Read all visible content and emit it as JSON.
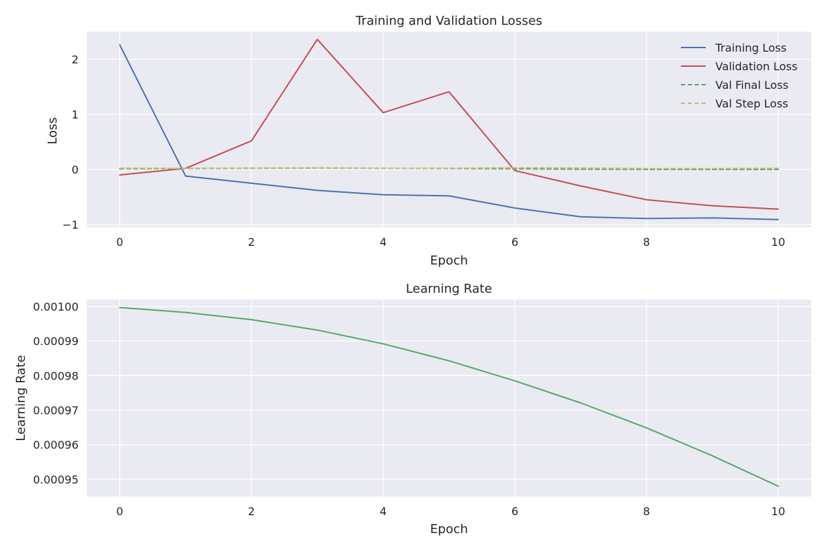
{
  "chart_data": [
    {
      "type": "line",
      "title": "Training and Validation Losses",
      "xlabel": "Epoch",
      "ylabel": "Loss",
      "xlim": [
        -0.5,
        10.5
      ],
      "ylim": [
        -1.05,
        2.5
      ],
      "x_ticks": [
        0,
        2,
        4,
        6,
        8,
        10
      ],
      "x_tick_labels": [
        "0",
        "2",
        "4",
        "6",
        "8",
        "10"
      ],
      "y_ticks": [
        -1,
        0,
        1,
        2
      ],
      "y_tick_labels": [
        "−1",
        "0",
        "1",
        "2"
      ],
      "grid": true,
      "legend_position": "top-right",
      "x": [
        0,
        1,
        2,
        3,
        4,
        5,
        6,
        7,
        8,
        9,
        10
      ],
      "series": [
        {
          "name": "Training Loss",
          "color": "#4c72b0",
          "dash": "solid",
          "values": [
            2.26,
            -0.12,
            -0.25,
            -0.38,
            -0.46,
            -0.48,
            -0.7,
            -0.86,
            -0.89,
            -0.88,
            -0.91
          ]
        },
        {
          "name": "Validation Loss",
          "color": "#c44e52",
          "dash": "solid",
          "values": [
            -0.1,
            0.02,
            0.52,
            2.36,
            1.03,
            1.41,
            -0.02,
            -0.3,
            -0.55,
            -0.66,
            -0.72
          ]
        },
        {
          "name": "Val Final Loss",
          "color": "#55a868",
          "dash": "dashed",
          "values": [
            0.01,
            0.015,
            0.02,
            0.025,
            0.02,
            0.015,
            0.01,
            0.005,
            0.0,
            0.0,
            0.0
          ]
        },
        {
          "name": "Val Step Loss",
          "color": "#ccb974",
          "dash": "dashed",
          "values": [
            0.02,
            0.02,
            0.025,
            0.03,
            0.02,
            0.02,
            0.03,
            0.025,
            0.015,
            0.015,
            0.02
          ]
        }
      ]
    },
    {
      "type": "line",
      "title": "Learning Rate",
      "xlabel": "Epoch",
      "ylabel": "Learning Rate",
      "xlim": [
        -0.5,
        10.5
      ],
      "ylim": [
        0.000945,
        0.001002
      ],
      "x_ticks": [
        0,
        2,
        4,
        6,
        8,
        10
      ],
      "x_tick_labels": [
        "0",
        "2",
        "4",
        "6",
        "8",
        "10"
      ],
      "y_ticks": [
        0.00095,
        0.00096,
        0.00097,
        0.00098,
        0.00099,
        0.001
      ],
      "y_tick_labels": [
        "0.00095",
        "0.00096",
        "0.00097",
        "0.00098",
        "0.00099",
        "0.00100"
      ],
      "grid": true,
      "x": [
        0,
        1,
        2,
        3,
        4,
        5,
        6,
        7,
        8,
        9,
        10
      ],
      "series": [
        {
          "color": "#55a868",
          "dash": "solid",
          "values": [
            0.0009997,
            0.0009983,
            0.0009962,
            0.0009932,
            0.0009892,
            0.0009843,
            0.0009785,
            0.0009721,
            0.0009649,
            0.0009568,
            0.000948
          ]
        }
      ]
    }
  ]
}
